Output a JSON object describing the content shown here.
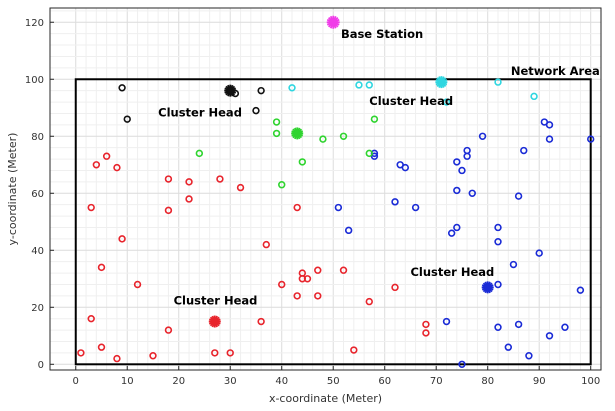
{
  "chart_data": {
    "type": "scatter",
    "xlabel": "x-coordinate (Meter)",
    "ylabel": "y-coordinate (Meter)",
    "xlim": [
      -5,
      102
    ],
    "ylim": [
      -2,
      125
    ],
    "xticks": [
      0,
      10,
      20,
      30,
      40,
      50,
      60,
      70,
      80,
      90,
      100
    ],
    "yticks": [
      0,
      20,
      40,
      60,
      80,
      100,
      120
    ],
    "grid": true,
    "network_area": {
      "x0": 0,
      "y0": 0,
      "x1": 100,
      "y1": 100
    },
    "colors": {
      "red": "#e8242c",
      "blue": "#1a2bd6",
      "green": "#2fd42f",
      "cyan": "#2fd6e0",
      "black": "#111111",
      "magenta": "#f03ce8"
    },
    "series": [
      {
        "color": "red",
        "points": [
          [
            1,
            4
          ],
          [
            3,
            16
          ],
          [
            3,
            55
          ],
          [
            4,
            70
          ],
          [
            5,
            6
          ],
          [
            5,
            34
          ],
          [
            6,
            73
          ],
          [
            8,
            69
          ],
          [
            8,
            2
          ],
          [
            9,
            44
          ],
          [
            12,
            28
          ],
          [
            15,
            3
          ],
          [
            18,
            65
          ],
          [
            18,
            54
          ],
          [
            18,
            12
          ],
          [
            22,
            64
          ],
          [
            22,
            58
          ],
          [
            27,
            4
          ],
          [
            28,
            65
          ],
          [
            30,
            4
          ],
          [
            32,
            62
          ],
          [
            36,
            15
          ],
          [
            37,
            42
          ],
          [
            40,
            28
          ],
          [
            43,
            24
          ],
          [
            43,
            55
          ],
          [
            44,
            30
          ],
          [
            44,
            32
          ],
          [
            45,
            30
          ],
          [
            47,
            24
          ],
          [
            47,
            33
          ],
          [
            52,
            33
          ],
          [
            54,
            5
          ],
          [
            57,
            22
          ],
          [
            62,
            27
          ],
          [
            68,
            14
          ],
          [
            68,
            11
          ]
        ]
      },
      {
        "color": "blue",
        "points": [
          [
            51,
            55
          ],
          [
            53,
            47
          ],
          [
            58,
            73
          ],
          [
            58,
            74
          ],
          [
            62,
            57
          ],
          [
            63,
            70
          ],
          [
            64,
            69
          ],
          [
            66,
            55
          ],
          [
            72,
            15
          ],
          [
            73,
            46
          ],
          [
            74,
            48
          ],
          [
            74,
            61
          ],
          [
            74,
            71
          ],
          [
            75,
            0
          ],
          [
            75,
            68
          ],
          [
            76,
            73
          ],
          [
            76,
            75
          ],
          [
            77,
            60
          ],
          [
            79,
            80
          ],
          [
            82,
            43
          ],
          [
            82,
            48
          ],
          [
            82,
            28
          ],
          [
            82,
            13
          ],
          [
            84,
            6
          ],
          [
            85,
            35
          ],
          [
            86,
            14
          ],
          [
            86,
            59
          ],
          [
            87,
            75
          ],
          [
            88,
            3
          ],
          [
            90,
            39
          ],
          [
            91,
            85
          ],
          [
            92,
            84
          ],
          [
            92,
            79
          ],
          [
            92,
            10
          ],
          [
            95,
            13
          ],
          [
            98,
            26
          ],
          [
            100,
            79
          ]
        ]
      },
      {
        "color": "green",
        "points": [
          [
            24,
            74
          ],
          [
            39,
            85
          ],
          [
            39,
            81
          ],
          [
            40,
            63
          ],
          [
            44,
            71
          ],
          [
            48,
            79
          ],
          [
            52,
            80
          ],
          [
            57,
            74
          ],
          [
            58,
            86
          ]
        ]
      },
      {
        "color": "cyan",
        "points": [
          [
            42,
            97
          ],
          [
            55,
            98
          ],
          [
            57,
            98
          ],
          [
            72,
            92
          ],
          [
            82,
            99
          ],
          [
            89,
            94
          ]
        ]
      },
      {
        "color": "black",
        "points": [
          [
            9,
            97
          ],
          [
            10,
            86
          ],
          [
            31,
            95
          ],
          [
            35,
            89
          ],
          [
            36,
            96
          ]
        ]
      }
    ],
    "cluster_heads": [
      {
        "x": 27,
        "y": 15,
        "color": "red"
      },
      {
        "x": 80,
        "y": 27,
        "color": "blue"
      },
      {
        "x": 43,
        "y": 81,
        "color": "green"
      },
      {
        "x": 71,
        "y": 99,
        "color": "cyan"
      },
      {
        "x": 30,
        "y": 96,
        "color": "black"
      }
    ],
    "base_station": {
      "x": 50,
      "y": 120,
      "color": "magenta"
    },
    "annotations": [
      {
        "text": "Base Station",
        "x": 51.5,
        "y": 114.5
      },
      {
        "text": "Network Area",
        "x": 84.5,
        "y": 101.5
      },
      {
        "text": "Cluster Head",
        "x": 16,
        "y": 87
      },
      {
        "text": "Cluster Head",
        "x": 57,
        "y": 91
      },
      {
        "text": "Cluster Head",
        "x": 65,
        "y": 31
      },
      {
        "text": "Cluster Head",
        "x": 19,
        "y": 21
      }
    ]
  }
}
